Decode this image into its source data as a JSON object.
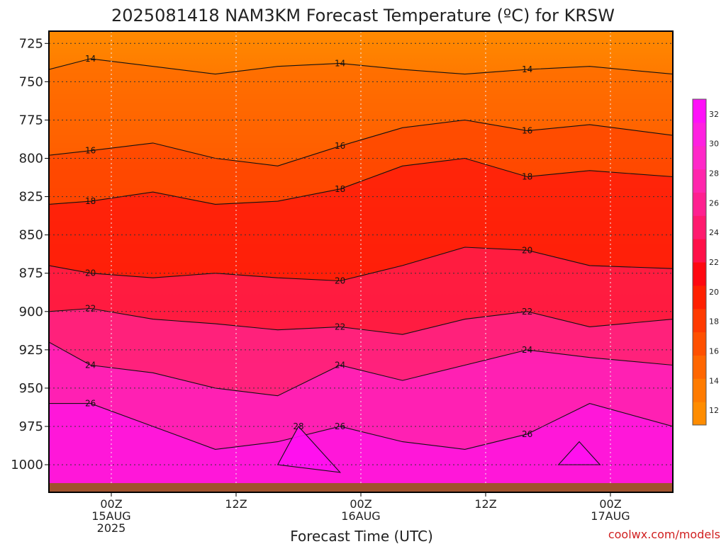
{
  "title": "2025081418 NAM3KM Forecast Temperature (ºC) for KRSW",
  "credit": "coolwx.com/models",
  "chart_data": {
    "type": "heatmap",
    "title": "2025081418 NAM3KM Forecast Temperature (ºC) for KRSW",
    "xlabel": "Forecast Time (UTC)",
    "ylabel": "",
    "x_ticks": [
      {
        "hour": 6,
        "lines": [
          "00Z",
          "15AUG",
          "2025"
        ]
      },
      {
        "hour": 18,
        "lines": [
          "12Z"
        ]
      },
      {
        "hour": 30,
        "lines": [
          "00Z",
          "16AUG"
        ]
      },
      {
        "hour": 42,
        "lines": [
          "12Z"
        ]
      },
      {
        "hour": 54,
        "lines": [
          "00Z",
          "17AUG"
        ]
      }
    ],
    "xlim": [
      0,
      60
    ],
    "y_ticks": [
      "725",
      "750",
      "775",
      "800",
      "825",
      "850",
      "875",
      "900",
      "925",
      "950",
      "975",
      "1000"
    ],
    "ylim": [
      1018,
      717
    ],
    "grid": true,
    "contour_interval": 1,
    "contour_labels": [
      "14",
      "16",
      "18",
      "20",
      "22",
      "24",
      "26",
      "28"
    ],
    "colorbar": {
      "ticks": [
        "12",
        "14",
        "16",
        "18",
        "20",
        "22",
        "24",
        "26",
        "28",
        "30",
        "32"
      ],
      "colors": [
        "#ff8c00",
        "#ff7b00",
        "#ff6600",
        "#ff5000",
        "#ff3a00",
        "#ff2000",
        "#ff0810",
        "#ff1048",
        "#ff1a6e",
        "#ff2090",
        "#ff26ac",
        "#ff28c8",
        "#ff20e0",
        "#ff10f8"
      ],
      "range": [
        11,
        33
      ]
    },
    "series": [
      {
        "name": "14",
        "values": [
          [
            0,
            742
          ],
          [
            4,
            735
          ],
          [
            10,
            740
          ],
          [
            16,
            745
          ],
          [
            22,
            740
          ],
          [
            28,
            738
          ],
          [
            34,
            742
          ],
          [
            40,
            745
          ],
          [
            46,
            742
          ],
          [
            52,
            740
          ],
          [
            60,
            745
          ]
        ]
      },
      {
        "name": "16",
        "values": [
          [
            0,
            798
          ],
          [
            4,
            795
          ],
          [
            10,
            790
          ],
          [
            16,
            800
          ],
          [
            22,
            805
          ],
          [
            28,
            792
          ],
          [
            34,
            780
          ],
          [
            40,
            775
          ],
          [
            46,
            782
          ],
          [
            52,
            778
          ],
          [
            60,
            785
          ]
        ]
      },
      {
        "name": "18",
        "values": [
          [
            0,
            830
          ],
          [
            4,
            828
          ],
          [
            10,
            822
          ],
          [
            16,
            830
          ],
          [
            22,
            828
          ],
          [
            28,
            820
          ],
          [
            34,
            805
          ],
          [
            40,
            800
          ],
          [
            46,
            812
          ],
          [
            52,
            808
          ],
          [
            60,
            812
          ]
        ]
      },
      {
        "name": "20",
        "values": [
          [
            0,
            870
          ],
          [
            4,
            875
          ],
          [
            10,
            878
          ],
          [
            16,
            875
          ],
          [
            22,
            878
          ],
          [
            28,
            880
          ],
          [
            34,
            870
          ],
          [
            40,
            858
          ],
          [
            46,
            860
          ],
          [
            52,
            870
          ],
          [
            60,
            872
          ]
        ]
      },
      {
        "name": "22",
        "values": [
          [
            0,
            900
          ],
          [
            4,
            898
          ],
          [
            10,
            905
          ],
          [
            16,
            908
          ],
          [
            22,
            912
          ],
          [
            28,
            910
          ],
          [
            34,
            915
          ],
          [
            40,
            905
          ],
          [
            46,
            900
          ],
          [
            52,
            910
          ],
          [
            60,
            905
          ]
        ]
      },
      {
        "name": "24",
        "values": [
          [
            0,
            920
          ],
          [
            4,
            935
          ],
          [
            10,
            940
          ],
          [
            16,
            950
          ],
          [
            22,
            955
          ],
          [
            28,
            935
          ],
          [
            34,
            945
          ],
          [
            40,
            935
          ],
          [
            46,
            925
          ],
          [
            52,
            930
          ],
          [
            60,
            935
          ]
        ]
      },
      {
        "name": "26",
        "values": [
          [
            0,
            960
          ],
          [
            4,
            960
          ],
          [
            10,
            975
          ],
          [
            16,
            990
          ],
          [
            22,
            985
          ],
          [
            28,
            975
          ],
          [
            34,
            985
          ],
          [
            40,
            990
          ],
          [
            46,
            980
          ],
          [
            52,
            960
          ],
          [
            60,
            975
          ]
        ]
      },
      {
        "name": "28",
        "values": [
          [
            22,
            1000
          ],
          [
            24,
            975
          ],
          [
            26,
            990
          ],
          [
            28,
            1005
          ],
          [
            49,
            1000
          ],
          [
            51,
            985
          ],
          [
            53,
            1000
          ]
        ]
      }
    ],
    "surface": {
      "color": "#a0522d",
      "pressure": 1012
    }
  }
}
